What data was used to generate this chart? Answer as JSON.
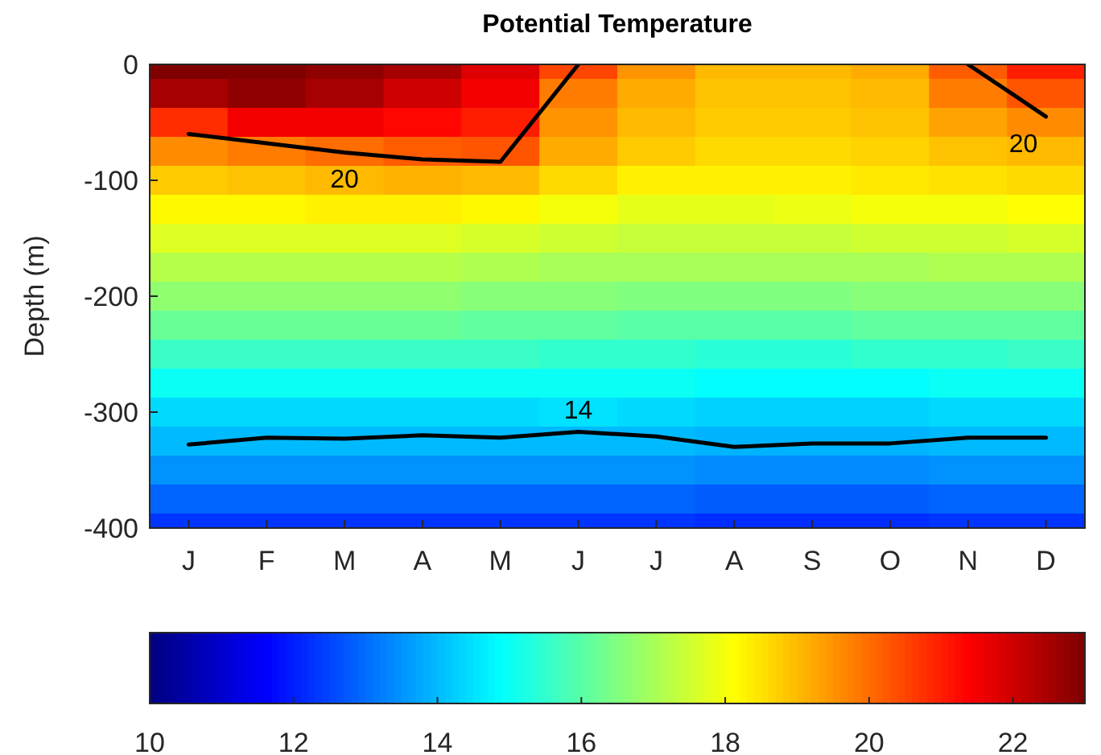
{
  "chart_data": {
    "type": "heatmap",
    "title": "Potential Temperature",
    "ylabel": "Depth (m)",
    "categories": [
      "J",
      "F",
      "M",
      "A",
      "M",
      "J",
      "J",
      "A",
      "S",
      "O",
      "N",
      "D"
    ],
    "ylim": [
      -400,
      0
    ],
    "yticks": [
      -400,
      -300,
      -200,
      -100,
      0
    ],
    "cells": [
      [
        23,
        23,
        22.8,
        22.5,
        21.8,
        20.5,
        19.5,
        19,
        19,
        19.2,
        20.2,
        21
      ],
      [
        22.5,
        22.8,
        22.5,
        22,
        21.5,
        19.8,
        19.2,
        18.9,
        18.9,
        19,
        19.8,
        20.3
      ],
      [
        20.8,
        21.5,
        21.5,
        21.3,
        21,
        19.5,
        19,
        18.8,
        18.8,
        18.9,
        19.3,
        19.6
      ],
      [
        19.6,
        19.8,
        20,
        20.2,
        20.3,
        19.2,
        18.8,
        18.6,
        18.6,
        18.7,
        18.9,
        19
      ],
      [
        18.8,
        18.9,
        19,
        19.1,
        19,
        18.6,
        18.3,
        18.3,
        18.3,
        18.4,
        18.5,
        18.6
      ],
      [
        18.2,
        18.2,
        18.3,
        18.3,
        18.2,
        18,
        17.8,
        17.8,
        17.9,
        18,
        18,
        18.1
      ],
      [
        17.7,
        17.7,
        17.7,
        17.7,
        17.6,
        17.5,
        17.4,
        17.4,
        17.4,
        17.5,
        17.5,
        17.6
      ],
      [
        17.2,
        17.2,
        17.2,
        17.2,
        17.1,
        17,
        17,
        17,
        17,
        17,
        17.1,
        17.1
      ],
      [
        16.7,
        16.7,
        16.7,
        16.7,
        16.6,
        16.6,
        16.5,
        16.5,
        16.5,
        16.6,
        16.6,
        16.6
      ],
      [
        16.2,
        16.2,
        16.2,
        16.2,
        16.1,
        16.1,
        16,
        16,
        16,
        16.1,
        16.1,
        16.1
      ],
      [
        15.6,
        15.6,
        15.6,
        15.6,
        15.6,
        15.5,
        15.5,
        15.4,
        15.4,
        15.5,
        15.5,
        15.6
      ],
      [
        15,
        15,
        15,
        15,
        15,
        15,
        15,
        14.9,
        14.9,
        14.9,
        15,
        15
      ],
      [
        14.4,
        14.4,
        14.4,
        14.4,
        14.4,
        14.5,
        14.4,
        14.3,
        14.3,
        14.3,
        14.4,
        14.4
      ],
      [
        14,
        14,
        14,
        14,
        14,
        14,
        14,
        13.9,
        13.9,
        13.9,
        14,
        14
      ],
      [
        13.5,
        13.5,
        13.5,
        13.5,
        13.5,
        13.5,
        13.5,
        13.4,
        13.4,
        13.4,
        13.5,
        13.5
      ],
      [
        12.9,
        12.9,
        12.9,
        12.9,
        12.9,
        12.9,
        12.9,
        12.8,
        12.8,
        12.8,
        12.9,
        12.9
      ],
      [
        12.3,
        12.3,
        12.3,
        12.3,
        12.3,
        12.3,
        12.3,
        12.2,
        12.2,
        12.2,
        12.3,
        12.3
      ]
    ],
    "clim": [
      10,
      23
    ],
    "cticks": [
      10,
      12,
      14,
      16,
      18,
      20,
      22
    ],
    "series": [
      {
        "type": "line",
        "name": "20",
        "color": "#000000",
        "values": [
          -60,
          -68,
          -76,
          -82,
          -84,
          0,
          null,
          null,
          null,
          null,
          null,
          null
        ]
      },
      {
        "type": "line",
        "name": "20",
        "color": "#000000",
        "values": [
          null,
          null,
          null,
          null,
          null,
          null,
          null,
          null,
          null,
          null,
          0,
          -45
        ]
      },
      {
        "type": "line",
        "name": "14",
        "color": "#000000",
        "values": [
          -328,
          -322,
          -323,
          -320,
          -322,
          -317,
          -321,
          -330,
          -327,
          -327,
          -322,
          -322
        ]
      }
    ]
  }
}
